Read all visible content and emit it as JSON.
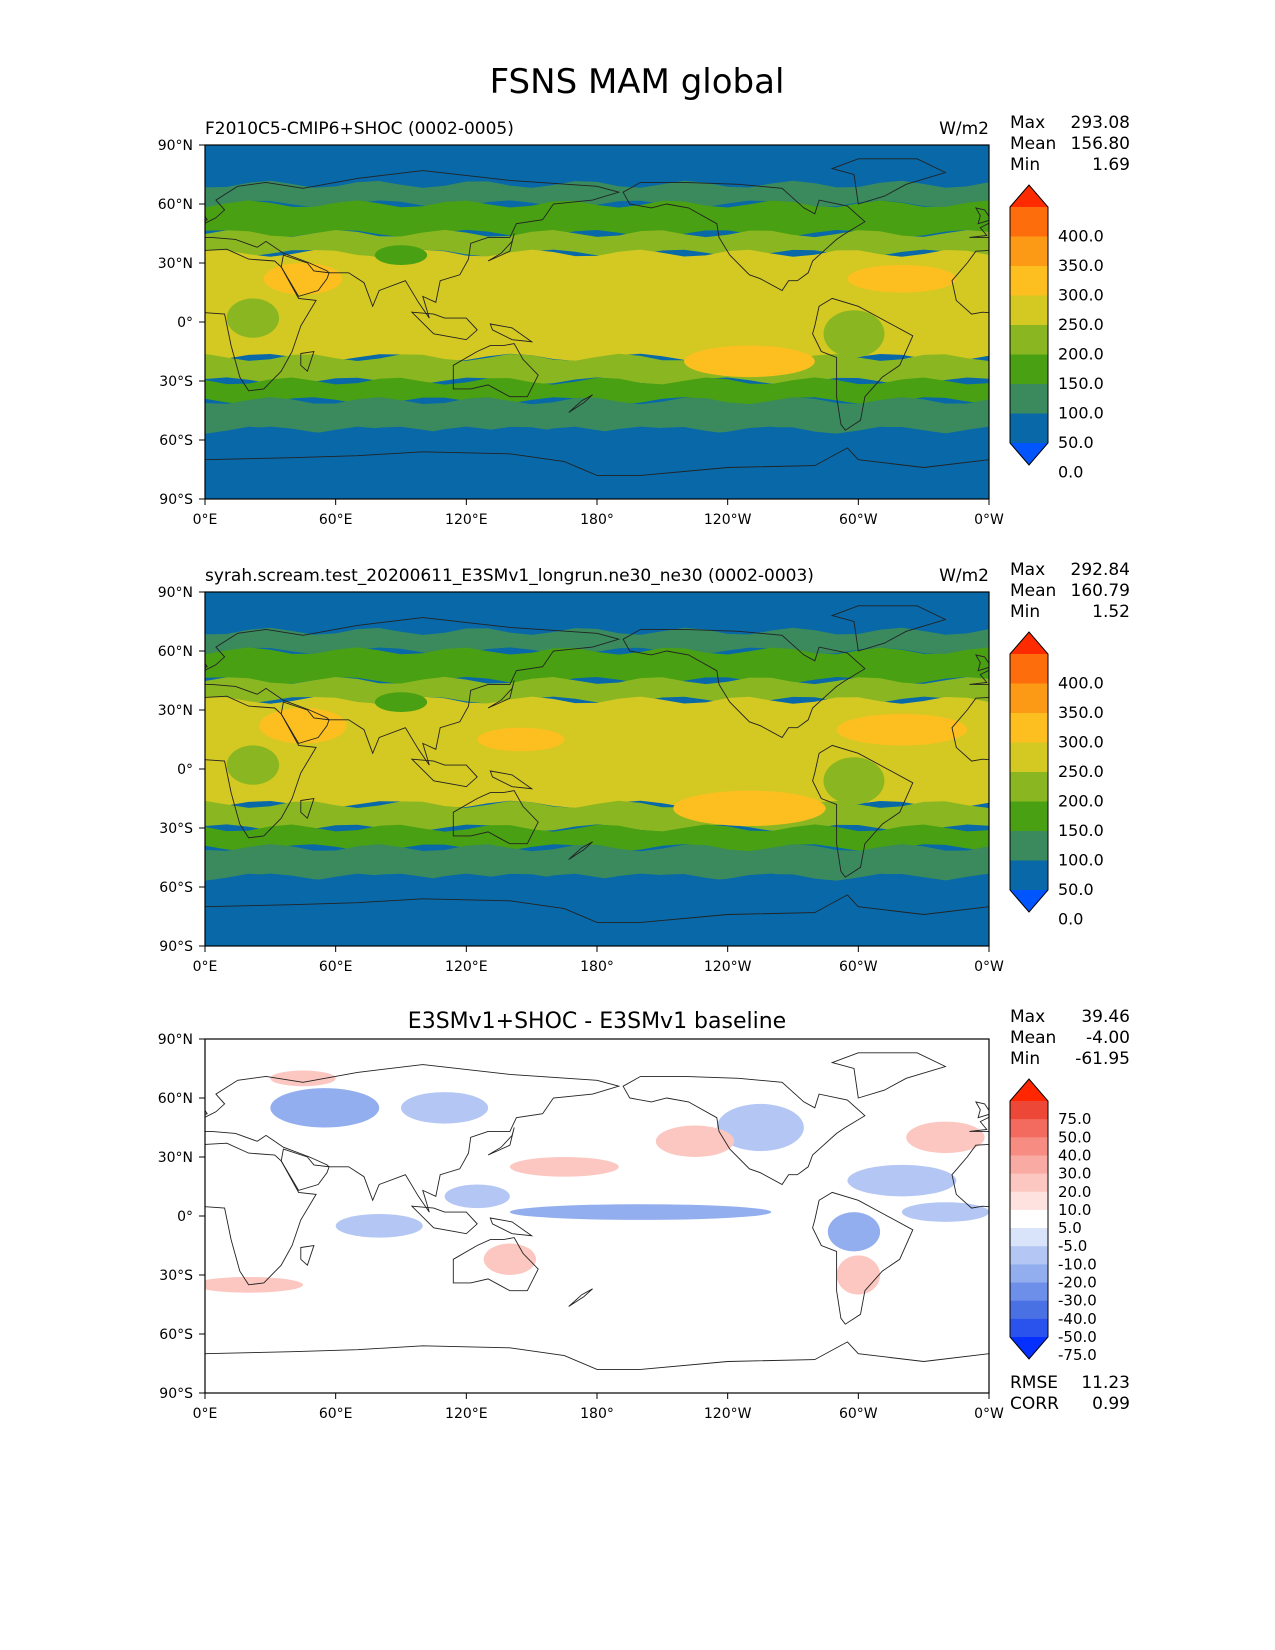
{
  "figure_title": "FSNS MAM global",
  "colors": {
    "test_levels": [
      "#0055ff",
      "#0868a8",
      "#3a8a5e",
      "#49a012",
      "#8ab721",
      "#d4c823",
      "#fdbf20",
      "#fd9a15",
      "#fd6d0b",
      "#ff2b00"
    ],
    "diff_levels": [
      "#0630ff",
      "#2a53ee",
      "#4a71e3",
      "#6d8ee9",
      "#93aeee",
      "#b4c7f4",
      "#d9e3fa",
      "#ffffff",
      "#fde2e0",
      "#fcc7c1",
      "#f9aba3",
      "#f78c82",
      "#f36a5f",
      "#ec4737",
      "#ff2600"
    ],
    "ocean_test": "#0868a8",
    "coast": "#222222"
  },
  "chart_data": [
    {
      "type": "heatmap",
      "panel": "test",
      "title": "F2010C5-CMIP6+SHOC (0002-0005)",
      "units": "W/m2",
      "stats": {
        "max_label": "Max",
        "max": "293.08",
        "mean_label": "Mean",
        "mean": "156.80",
        "min_label": "Min",
        "min": "1.69"
      },
      "xlim": [
        0,
        360
      ],
      "ylim": [
        -90,
        90
      ],
      "xticks": [
        "0°E",
        "60°E",
        "120°E",
        "180°",
        "120°W",
        "60°W",
        "0°W"
      ],
      "yticks": [
        "90°N",
        "60°N",
        "30°N",
        "0°",
        "30°S",
        "60°S",
        "90°S"
      ],
      "colorbar_levels": [
        "400.0",
        "350.0",
        "300.0",
        "250.0",
        "200.0",
        "150.0",
        "100.0",
        "50.0",
        "0.0"
      ],
      "zonal_bands": [
        {
          "lat_top": 90,
          "lat_bottom": 70,
          "value": 40
        },
        {
          "lat_top": 70,
          "lat_bottom": 60,
          "value": 90
        },
        {
          "lat_top": 60,
          "lat_bottom": 45,
          "value": 125
        },
        {
          "lat_top": 45,
          "lat_bottom": 35,
          "value": 160
        },
        {
          "lat_top": 35,
          "lat_bottom": -18,
          "value": 215
        },
        {
          "lat_top": -18,
          "lat_bottom": -30,
          "value": 165
        },
        {
          "lat_top": -30,
          "lat_bottom": -40,
          "value": 120
        },
        {
          "lat_top": -40,
          "lat_bottom": -55,
          "value": 85
        },
        {
          "lat_top": -55,
          "lat_bottom": -90,
          "value": 40
        }
      ],
      "features": [
        {
          "name": "Sahara-Arabia",
          "lon": 45,
          "lat": 22,
          "rlon": 18,
          "rlat": 8,
          "value": 260
        },
        {
          "name": "SE Pacific subtropics",
          "lon": 250,
          "lat": -20,
          "rlon": 30,
          "rlat": 8,
          "value": 260
        },
        {
          "name": "N Atlantic subtropics",
          "lon": 320,
          "lat": 22,
          "rlon": 25,
          "rlat": 7,
          "value": 255
        },
        {
          "name": "Central Africa",
          "lon": 22,
          "lat": 2,
          "rlon": 12,
          "rlat": 10,
          "value": 175
        },
        {
          "name": "Amazon",
          "lon": 298,
          "lat": -6,
          "rlon": 14,
          "rlat": 12,
          "value": 170
        },
        {
          "name": "Tibet",
          "lon": 90,
          "lat": 34,
          "rlon": 12,
          "rlat": 5,
          "value": 110
        }
      ]
    },
    {
      "type": "heatmap",
      "panel": "reference",
      "title": "syrah.scream.test_20200611_E3SMv1_longrun.ne30_ne30 (0002-0003)",
      "units": "W/m2",
      "stats": {
        "max_label": "Max",
        "max": "292.84",
        "mean_label": "Mean",
        "mean": "160.79",
        "min_label": "Min",
        "min": "1.52"
      },
      "xlim": [
        0,
        360
      ],
      "ylim": [
        -90,
        90
      ],
      "xticks": [
        "0°E",
        "60°E",
        "120°E",
        "180°",
        "120°W",
        "60°W",
        "0°W"
      ],
      "yticks": [
        "90°N",
        "60°N",
        "30°N",
        "0°",
        "30°S",
        "60°S",
        "90°S"
      ],
      "colorbar_levels": [
        "400.0",
        "350.0",
        "300.0",
        "250.0",
        "200.0",
        "150.0",
        "100.0",
        "50.0",
        "0.0"
      ],
      "zonal_bands": [
        {
          "lat_top": 90,
          "lat_bottom": 70,
          "value": 40
        },
        {
          "lat_top": 70,
          "lat_bottom": 60,
          "value": 90
        },
        {
          "lat_top": 60,
          "lat_bottom": 45,
          "value": 125
        },
        {
          "lat_top": 45,
          "lat_bottom": 35,
          "value": 165
        },
        {
          "lat_top": 35,
          "lat_bottom": -18,
          "value": 220
        },
        {
          "lat_top": -18,
          "lat_bottom": -30,
          "value": 170
        },
        {
          "lat_top": -30,
          "lat_bottom": -40,
          "value": 125
        },
        {
          "lat_top": -40,
          "lat_bottom": -55,
          "value": 85
        },
        {
          "lat_top": -55,
          "lat_bottom": -90,
          "value": 40
        }
      ],
      "features": [
        {
          "name": "Sahara-Arabia",
          "lon": 45,
          "lat": 22,
          "rlon": 20,
          "rlat": 9,
          "value": 260
        },
        {
          "name": "SE Pacific subtropics",
          "lon": 250,
          "lat": -20,
          "rlon": 35,
          "rlat": 9,
          "value": 262
        },
        {
          "name": "N Atlantic subtropics",
          "lon": 320,
          "lat": 20,
          "rlon": 30,
          "rlat": 8,
          "value": 258
        },
        {
          "name": "W Pacific warm pool",
          "lon": 145,
          "lat": 15,
          "rlon": 20,
          "rlat": 6,
          "value": 255
        },
        {
          "name": "Central Africa",
          "lon": 22,
          "lat": 2,
          "rlon": 12,
          "rlat": 10,
          "value": 180
        },
        {
          "name": "Amazon",
          "lon": 298,
          "lat": -6,
          "rlon": 14,
          "rlat": 12,
          "value": 175
        },
        {
          "name": "Tibet",
          "lon": 90,
          "lat": 34,
          "rlon": 12,
          "rlat": 5,
          "value": 110
        }
      ]
    },
    {
      "type": "heatmap",
      "panel": "difference",
      "title": "E3SMv1+SHOC - E3SMv1 baseline",
      "units": "",
      "stats": {
        "max_label": "Max",
        "max": "39.46",
        "mean_label": "Mean",
        "mean": "-4.00",
        "min_label": "Min",
        "min": "-61.95"
      },
      "metrics": {
        "rmse_label": "RMSE",
        "rmse": "11.23",
        "corr_label": "CORR",
        "corr": "0.99"
      },
      "xlim": [
        0,
        360
      ],
      "ylim": [
        -90,
        90
      ],
      "xticks": [
        "0°E",
        "60°E",
        "120°E",
        "180°",
        "120°W",
        "60°W",
        "0°W"
      ],
      "yticks": [
        "90°N",
        "60°N",
        "30°N",
        "0°",
        "30°S",
        "60°S",
        "90°S"
      ],
      "colorbar_levels": [
        "75.0",
        "50.0",
        "40.0",
        "30.0",
        "20.0",
        "10.0",
        "5.0",
        "-5.0",
        "-10.0",
        "-20.0",
        "-30.0",
        "-40.0",
        "-50.0",
        "-75.0"
      ],
      "features": [
        {
          "name": "Equatorial Pacific band",
          "lon": 200,
          "lat": 2,
          "rlon": 60,
          "rlat": 4,
          "value": -25
        },
        {
          "name": "Equatorial Atlantic",
          "lon": 340,
          "lat": 2,
          "rlon": 20,
          "rlat": 5,
          "value": -20
        },
        {
          "name": "Central Asia",
          "lon": 55,
          "lat": 55,
          "rlon": 25,
          "rlat": 10,
          "value": -25
        },
        {
          "name": "Siberia",
          "lon": 110,
          "lat": 55,
          "rlon": 20,
          "rlat": 8,
          "value": -15
        },
        {
          "name": "North America",
          "lon": 255,
          "lat": 45,
          "rlon": 20,
          "rlat": 12,
          "value": -15
        },
        {
          "name": "Tropical Atlantic",
          "lon": 320,
          "lat": 18,
          "rlon": 25,
          "rlat": 8,
          "value": -20
        },
        {
          "name": "Amazon",
          "lon": 298,
          "lat": -8,
          "rlon": 12,
          "rlat": 10,
          "value": -25
        },
        {
          "name": "Indian Ocean",
          "lon": 80,
          "lat": -5,
          "rlon": 20,
          "rlat": 6,
          "value": -15
        },
        {
          "name": "Maritime continent",
          "lon": 125,
          "lat": 10,
          "rlon": 15,
          "rlat": 6,
          "value": -20
        },
        {
          "name": "NW Pacific",
          "lon": 165,
          "lat": 25,
          "rlon": 25,
          "rlat": 5,
          "value": 15
        },
        {
          "name": "N Atlantic",
          "lon": 340,
          "lat": 40,
          "rlon": 18,
          "rlat": 8,
          "value": 15
        },
        {
          "name": "NE Pacific",
          "lon": 225,
          "lat": 38,
          "rlon": 18,
          "rlat": 8,
          "value": 15
        },
        {
          "name": "Australia",
          "lon": 140,
          "lat": -22,
          "rlon": 12,
          "rlat": 8,
          "value": 15
        },
        {
          "name": "South America",
          "lon": 300,
          "lat": -30,
          "rlon": 10,
          "rlat": 10,
          "value": 15
        },
        {
          "name": "S Atlantic",
          "lon": 20,
          "lat": -35,
          "rlon": 25,
          "rlat": 4,
          "value": 10
        },
        {
          "name": "Arctic Europe",
          "lon": 45,
          "lat": 70,
          "rlon": 15,
          "rlat": 4,
          "value": 10
        }
      ]
    }
  ]
}
